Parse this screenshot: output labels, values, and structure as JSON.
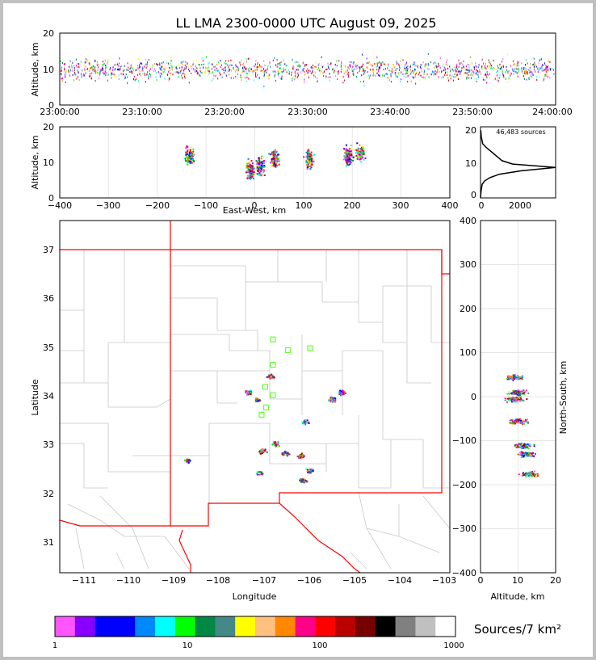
{
  "title": "LL LMA 2300-0000 UTC August 09, 2025",
  "time_panel": {
    "ylabel": "Altitude, km",
    "y_ticks": [
      "0",
      "10",
      "20"
    ],
    "x_ticks": [
      "23:00:00",
      "23:10:00",
      "23:20:00",
      "23:30:00",
      "23:40:00",
      "23:50:00",
      "24:00:00"
    ]
  },
  "ew_panel": {
    "ylabel": "Altitude, km",
    "xlabel": "East-West, km",
    "y_ticks": [
      "0",
      "10",
      "20"
    ],
    "x_ticks": [
      "−400",
      "−300",
      "−200",
      "−100",
      "0",
      "100",
      "200",
      "300",
      "400"
    ]
  },
  "histogram": {
    "label": "46,483 sources",
    "y_ticks": [
      "0",
      "10",
      "20"
    ],
    "x_ticks": [
      "0",
      "2000"
    ]
  },
  "map_panel": {
    "xlabel": "Longitude",
    "ylabel": "Latitude",
    "lon_ticks": [
      "−111",
      "−110",
      "−109",
      "−108",
      "−107",
      "−106",
      "−105",
      "−104",
      "−103"
    ],
    "lat_ticks": [
      "31",
      "32",
      "33",
      "34",
      "35",
      "36",
      "37"
    ]
  },
  "ns_panel": {
    "xlabel": "Altitude, km",
    "ylabel": "North-South, km",
    "x_ticks": [
      "0",
      "10",
      "20"
    ],
    "y_ticks": [
      "−400",
      "−300",
      "−200",
      "−100",
      "0",
      "100",
      "200",
      "300",
      "400"
    ]
  },
  "colorbar": {
    "label": "Sources/7 km²",
    "ticks": [
      "1",
      "10",
      "100",
      "1000"
    ],
    "colors": [
      "#ff55ff",
      "#8800ff",
      "#0000ff",
      "#0000ff",
      "#0088ff",
      "#00ffff",
      "#00ff00",
      "#008844",
      "#448888",
      "#ffff00",
      "#ffc080",
      "#ff8800",
      "#ff0088",
      "#ff0000",
      "#bb0000",
      "#770000",
      "#000000",
      "#808080",
      "#c0c0c0",
      "#ffffff"
    ]
  },
  "chart_data": {
    "type": "scatter",
    "title": "LL LMA 2300-0000 UTC August 09, 2025",
    "total_sources": "46,483 sources",
    "altitude_histogram": {
      "altitude_km": [
        0,
        2,
        4,
        5,
        6,
        7,
        8,
        9,
        10,
        11,
        12,
        13,
        14,
        15,
        16,
        18,
        20
      ],
      "count": [
        0,
        20,
        60,
        150,
        350,
        700,
        1500,
        2800,
        1200,
        800,
        650,
        500,
        350,
        200,
        80,
        30,
        10
      ],
      "xlim": [
        0,
        2800
      ],
      "ylim": [
        0,
        21
      ]
    },
    "ew_clusters_km": [
      {
        "x": -135,
        "alt": 12
      },
      {
        "x": -10,
        "alt": 8
      },
      {
        "x": 10,
        "alt": 9
      },
      {
        "x": 40,
        "alt": 11
      },
      {
        "x": 110,
        "alt": 11
      },
      {
        "x": 190,
        "alt": 12
      },
      {
        "x": 215,
        "alt": 13
      }
    ],
    "ns_clusters_km": [
      {
        "y": 45,
        "alt": 9
      },
      {
        "y": 10,
        "alt": 10
      },
      {
        "y": -5,
        "alt": 9
      },
      {
        "y": -55,
        "alt": 10
      },
      {
        "y": -110,
        "alt": 11
      },
      {
        "y": -130,
        "alt": 12
      },
      {
        "y": -175,
        "alt": 13
      }
    ],
    "map_clusters": [
      {
        "lon": -107.35,
        "lat": 34.1
      },
      {
        "lon": -107.15,
        "lat": 33.95
      },
      {
        "lon": -106.85,
        "lat": 34.42
      },
      {
        "lon": -106.1,
        "lat": 33.5
      },
      {
        "lon": -105.5,
        "lat": 33.95
      },
      {
        "lon": -105.3,
        "lat": 34.1
      },
      {
        "lon": -108.7,
        "lat": 32.7
      },
      {
        "lon": -107.05,
        "lat": 32.9
      },
      {
        "lon": -106.75,
        "lat": 33.05
      },
      {
        "lon": -106.55,
        "lat": 32.85
      },
      {
        "lon": -107.1,
        "lat": 32.45
      },
      {
        "lon": -106.2,
        "lat": 32.8
      },
      {
        "lon": -106.0,
        "lat": 32.5
      },
      {
        "lon": -106.15,
        "lat": 32.3
      }
    ],
    "station_markers": [
      {
        "lon": -106.8,
        "lat": 35.17
      },
      {
        "lon": -106.47,
        "lat": 34.95
      },
      {
        "lon": -105.98,
        "lat": 34.99
      },
      {
        "lon": -106.8,
        "lat": 34.65
      },
      {
        "lon": -106.97,
        "lat": 34.2
      },
      {
        "lon": -106.8,
        "lat": 34.03
      },
      {
        "lon": -106.95,
        "lat": 33.78
      },
      {
        "lon": -107.05,
        "lat": 33.63
      }
    ],
    "xlim_time": [
      "23:00:00",
      "24:00:00"
    ],
    "ylim_alt": [
      0,
      20
    ],
    "xlim_ew": [
      -400,
      400
    ],
    "ylim_ns": [
      -400,
      400
    ],
    "xlim_lon": [
      -111.5,
      -102.9
    ],
    "ylim_lat": [
      30.4,
      37.6
    ]
  }
}
